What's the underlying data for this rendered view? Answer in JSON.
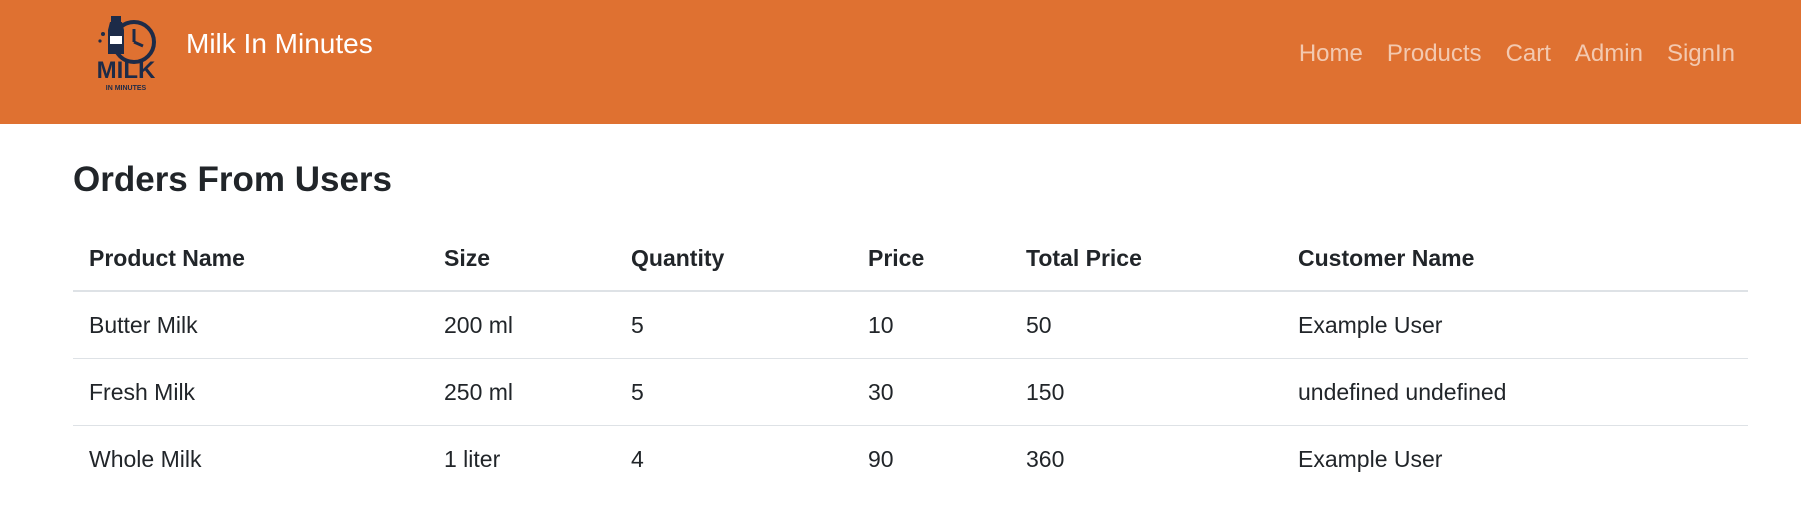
{
  "brand": {
    "name": "Milk In Minutes",
    "logo_text_main": "MILK",
    "logo_text_sub": "IN MINUTES"
  },
  "nav": {
    "items": [
      {
        "label": "Home"
      },
      {
        "label": "Products"
      },
      {
        "label": "Cart"
      },
      {
        "label": "Admin"
      },
      {
        "label": "SignIn"
      }
    ]
  },
  "page": {
    "title": "Orders From Users"
  },
  "orders_table": {
    "headers": [
      "Product Name",
      "Size",
      "Quantity",
      "Price",
      "Total Price",
      "Customer Name"
    ],
    "rows": [
      [
        "Butter Milk",
        "200 ml",
        "5",
        "10",
        "50",
        "Example User"
      ],
      [
        "Fresh Milk",
        "250 ml",
        "5",
        "30",
        "150",
        "undefined undefined"
      ],
      [
        "Whole Milk",
        "1 liter",
        "4",
        "90",
        "360",
        "Example User"
      ]
    ]
  },
  "colors": {
    "navbar_bg": "#df7131",
    "logo_dark": "#1d2b48"
  }
}
